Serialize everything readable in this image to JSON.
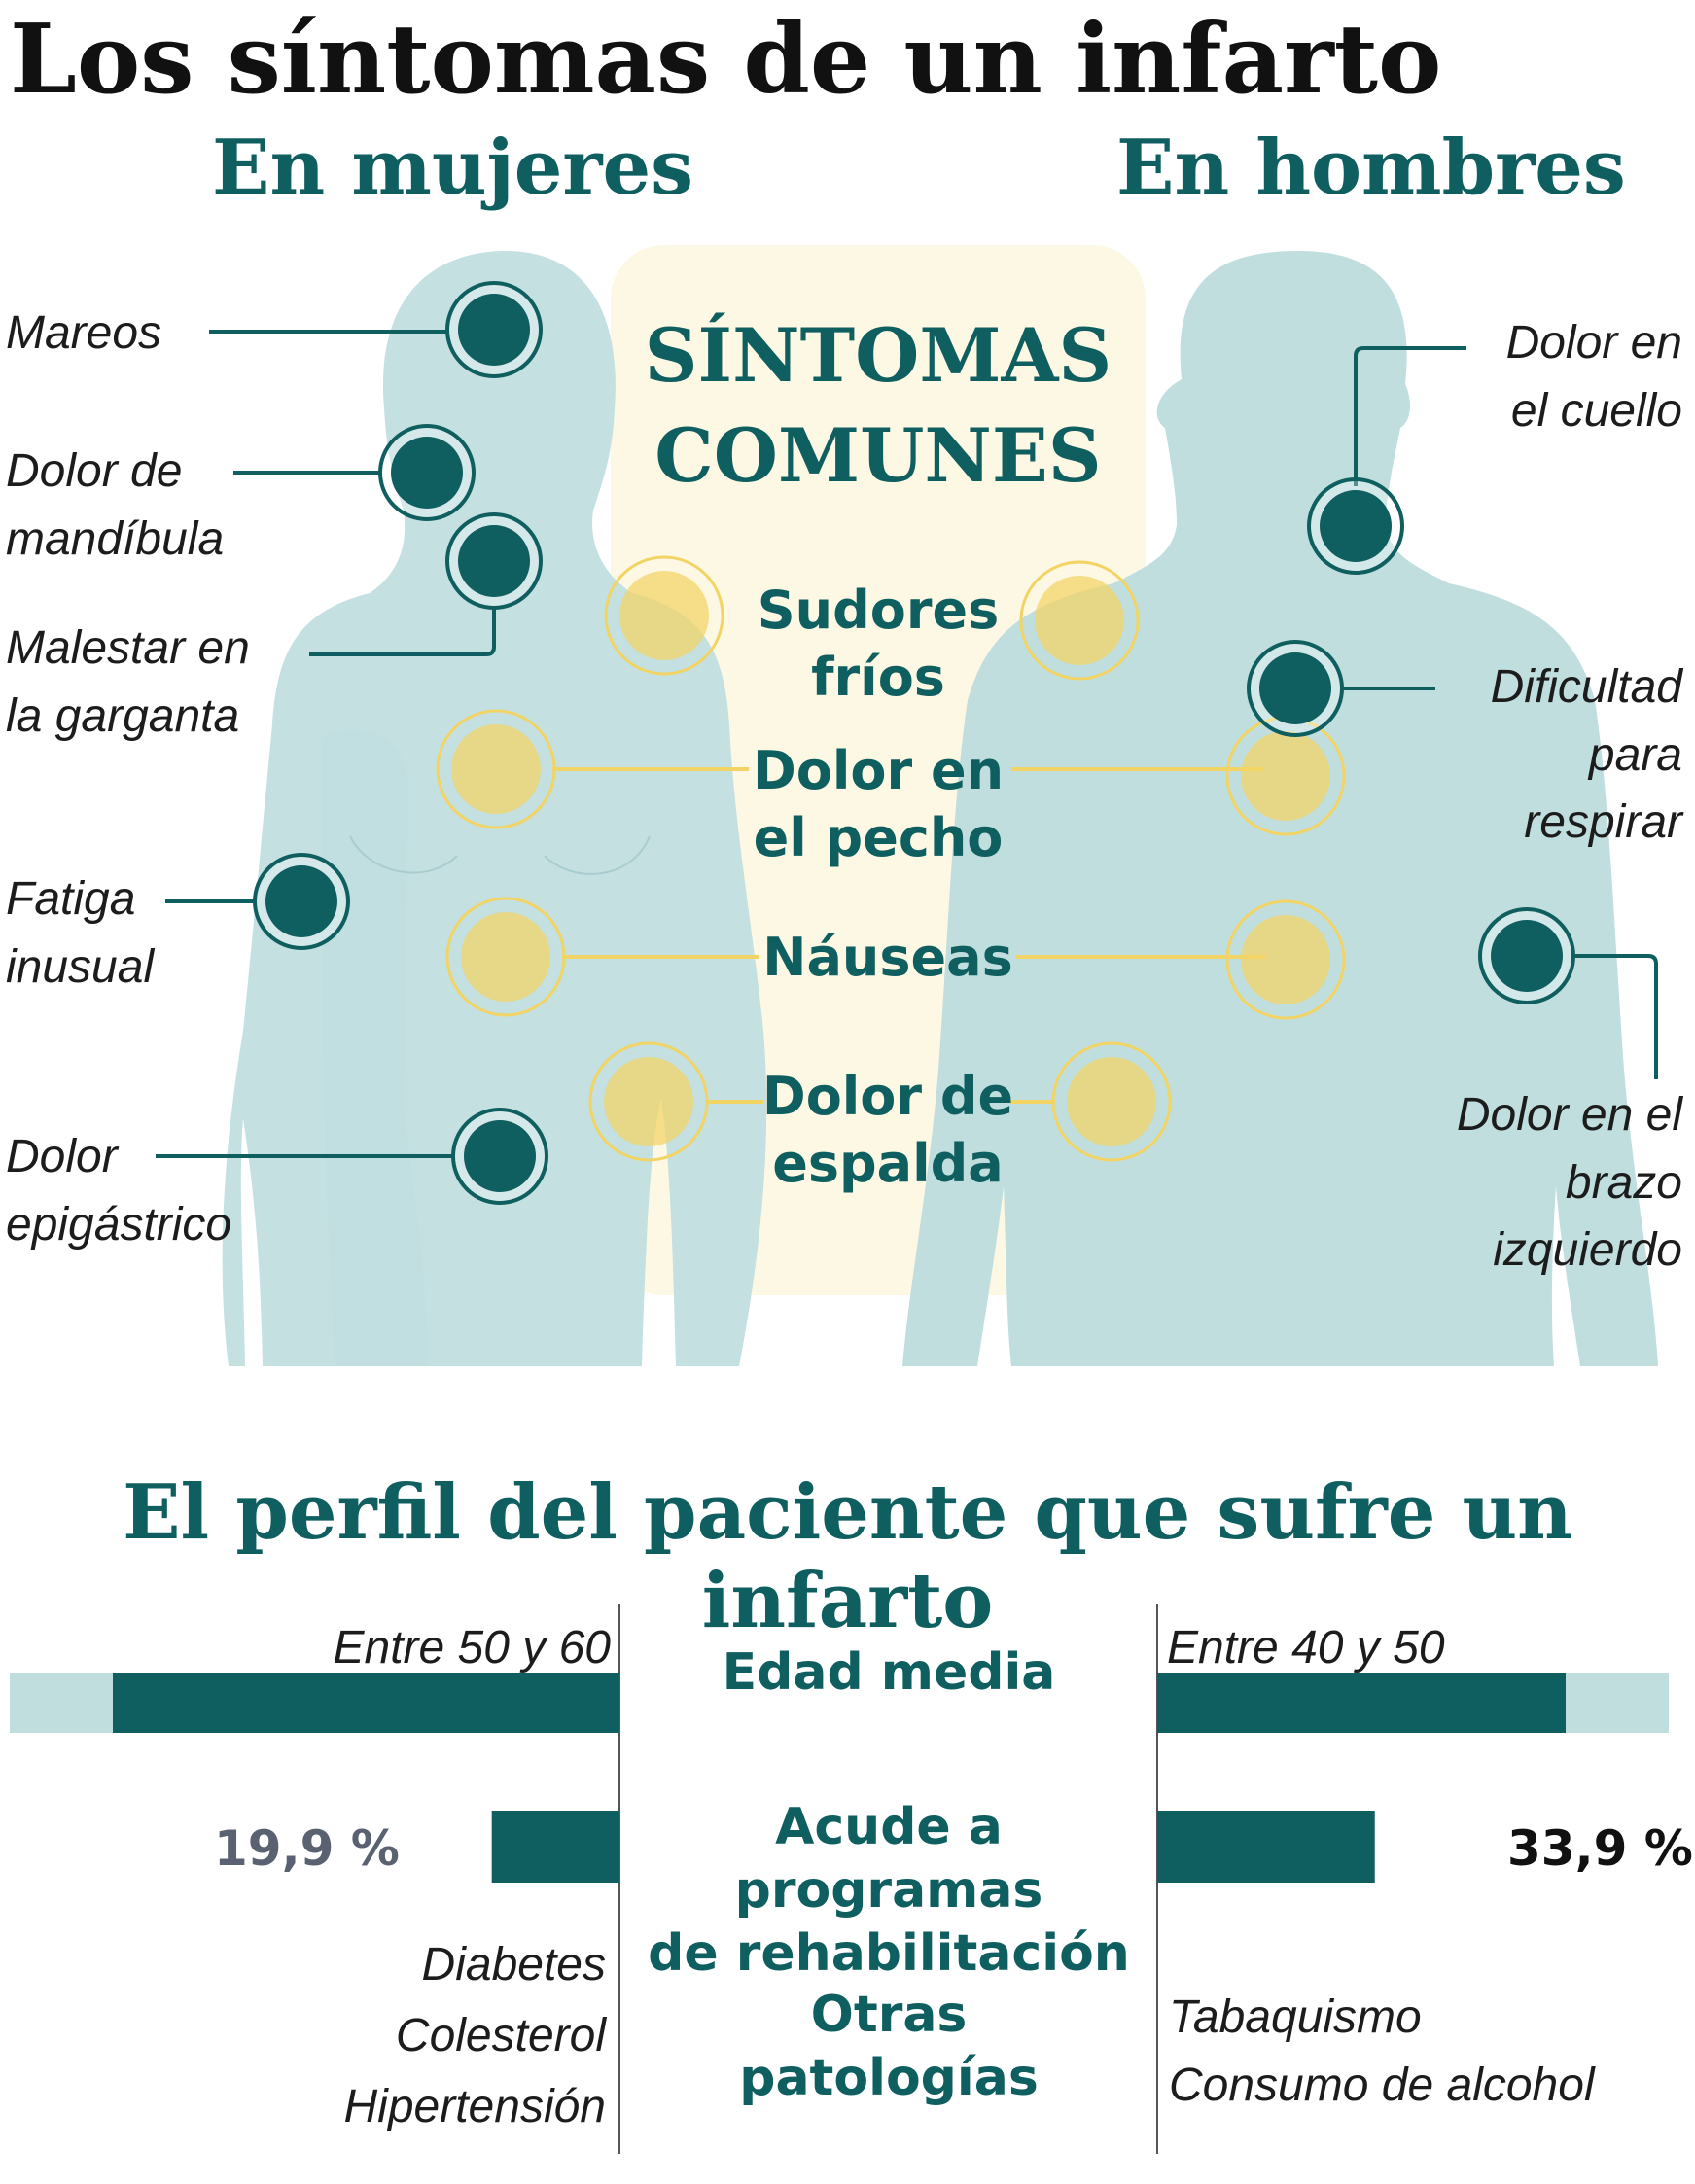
{
  "title": "Los síntomas de un infarto",
  "women": {
    "heading": "En mujeres",
    "symptoms": [
      "Mareos",
      "Dolor de\nmandíbula",
      "Malestar en\nla garganta",
      "Fatiga\ninusual",
      "Dolor\nepigástrico"
    ]
  },
  "men": {
    "heading": "En hombres",
    "symptoms": [
      "Dolor en\nel cuello",
      "Dificultad\npara\nrespirar",
      "Dolor en el\nbrazo\nizquierdo"
    ]
  },
  "common": {
    "heading": "SÍNTOMAS\nCOMUNES",
    "symptoms": [
      "Sudores\nfríos",
      "Dolor en\nel pecho",
      "Náuseas",
      "Dolor de\nespalda"
    ]
  },
  "profile": {
    "title": "El perfil del paciente que sufre un infarto",
    "rows": [
      {
        "label": "Edad media",
        "women": "Entre 50 y 60",
        "men": "Entre 40 y 50"
      },
      {
        "label": "Acude a programas\nde rehabilitación",
        "women": "19,9 %",
        "men": "33,9 %",
        "women_value": 19.9,
        "men_value": 33.9
      },
      {
        "label": "Otras\npatologías",
        "women": "Diabetes\nColesterol\nHipertensión",
        "men": "Tabaquismo\nConsumo de alcohol"
      }
    ]
  },
  "colors": {
    "teal": "#0f5e60",
    "silhouette": "#c1dedf",
    "yellow": "#f2d464",
    "highlight_panel": "#fdf8e4"
  }
}
